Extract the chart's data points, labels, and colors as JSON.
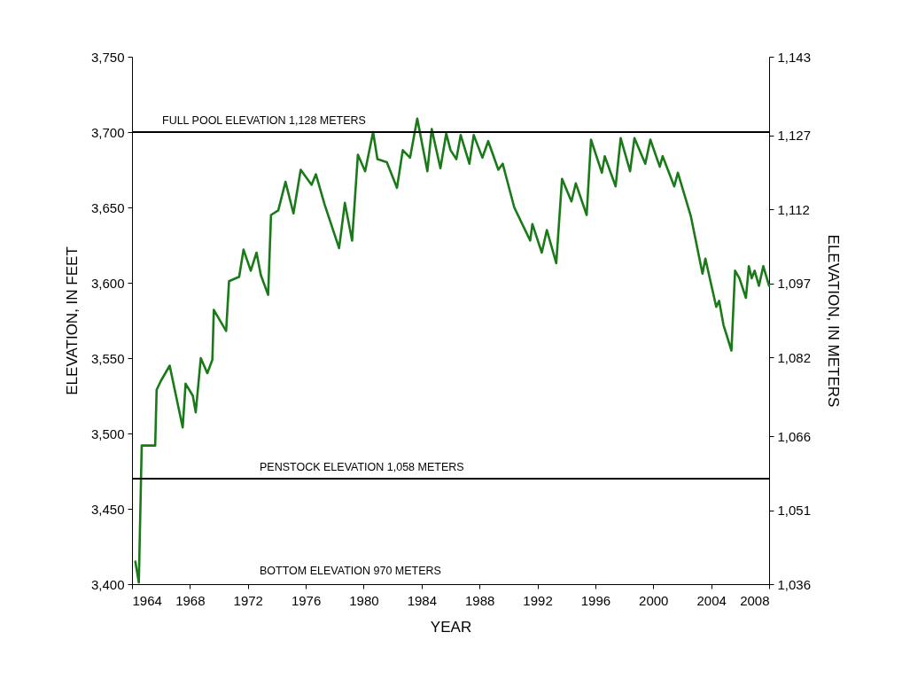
{
  "chart_data": {
    "type": "line",
    "xlabel": "YEAR",
    "ylabel": "ELEVATION, IN FEET",
    "y2label": "ELEVATION, IN METERS",
    "xlim": [
      1964,
      2008
    ],
    "xticks": [
      1964,
      1968,
      1972,
      1976,
      1980,
      1984,
      1988,
      1992,
      1996,
      2000,
      2004,
      2008
    ],
    "ylim": [
      3400,
      3750
    ],
    "yticks": [
      {
        "value": 3400,
        "label": "3,400"
      },
      {
        "value": 3450,
        "label": "3,450"
      },
      {
        "value": 3500,
        "label": "3,500"
      },
      {
        "value": 3550,
        "label": "3,550"
      },
      {
        "value": 3600,
        "label": "3,600"
      },
      {
        "value": 3650,
        "label": "3,650"
      },
      {
        "value": 3700,
        "label": "3,700"
      },
      {
        "value": 3750,
        "label": "3,750"
      }
    ],
    "y2lim": [
      1036,
      1143
    ],
    "y2ticks": [
      {
        "value": 1036,
        "label": "1,036"
      },
      {
        "value": 1051,
        "label": "1,051"
      },
      {
        "value": 1066,
        "label": "1,066"
      },
      {
        "value": 1082,
        "label": "1,082"
      },
      {
        "value": 1097,
        "label": "1,097"
      },
      {
        "value": 1112,
        "label": "1,112"
      },
      {
        "value": 1127,
        "label": "1,127"
      },
      {
        "value": 1143,
        "label": "1,143"
      }
    ],
    "grid": false,
    "marker": "none",
    "line_style": "solid",
    "ref_lines": [
      {
        "axis": "y",
        "value": 3700,
        "label": "FULL POOL ELEVATION 1,128 METERS",
        "color": "#000000"
      },
      {
        "axis": "y",
        "value": 3470,
        "label": "PENSTOCK ELEVATION 1,058 METERS",
        "color": "#000000"
      }
    ],
    "annotations": [
      "BOTTOM ELEVATION 970 METERS"
    ],
    "series": [
      {
        "color": "#1a7a1a",
        "x": [
          1964.23,
          1964.47,
          1964.67,
          1965.6,
          1965.7,
          1966.0,
          1966.6,
          1967.5,
          1967.7,
          1968.2,
          1968.4,
          1968.75,
          1969.2,
          1969.55,
          1969.65,
          1970.5,
          1970.7,
          1971.4,
          1971.7,
          1972.2,
          1972.6,
          1972.9,
          1973.4,
          1973.6,
          1974.1,
          1974.6,
          1975.15,
          1975.65,
          1976.4,
          1976.7,
          1977.3,
          1978.3,
          1978.7,
          1979.2,
          1979.6,
          1980.1,
          1980.65,
          1980.95,
          1981.6,
          1982.3,
          1982.7,
          1983.2,
          1983.7,
          1984.4,
          1984.7,
          1985.3,
          1985.7,
          1986.0,
          1986.4,
          1986.7,
          1987.3,
          1987.6,
          1988.2,
          1988.6,
          1989.3,
          1989.6,
          1990.4,
          1991.5,
          1991.65,
          1992.3,
          1992.65,
          1993.3,
          1993.7,
          1994.35,
          1994.65,
          1995.4,
          1995.7,
          1996.45,
          1996.65,
          1997.4,
          1997.75,
          1998.4,
          1998.7,
          1999.45,
          1999.8,
          2000.45,
          2000.65,
          2001.45,
          2001.7,
          2002.6,
          2003.4,
          2003.6,
          2004.35,
          2004.55,
          2004.85,
          2005.4,
          2005.65,
          2005.95,
          2006.4,
          2006.6,
          2006.8,
          2007.0,
          2007.3,
          2007.6,
          2008.0
        ],
        "values": [
          3415,
          3401,
          3492,
          3492,
          3529,
          3535,
          3545,
          3504,
          3533,
          3525,
          3514,
          3550,
          3540,
          3549,
          3582,
          3568,
          3601,
          3604,
          3622,
          3608,
          3620,
          3605,
          3592,
          3645,
          3648,
          3667,
          3646,
          3675,
          3665,
          3672,
          3652,
          3623,
          3653,
          3628,
          3685,
          3674,
          3700,
          3682,
          3680,
          3663,
          3688,
          3683,
          3709,
          3674,
          3702,
          3676,
          3699,
          3688,
          3682,
          3698,
          3679,
          3698,
          3683,
          3694,
          3675,
          3679,
          3650,
          3628,
          3639,
          3620,
          3635,
          3613,
          3669,
          3654,
          3666,
          3645,
          3695,
          3673,
          3684,
          3664,
          3696,
          3674,
          3696,
          3679,
          3695,
          3677,
          3684,
          3664,
          3673,
          3644,
          3606,
          3616,
          3584,
          3588,
          3572,
          3555,
          3608,
          3603,
          3590,
          3611,
          3603,
          3608,
          3598,
          3611,
          3598
        ]
      }
    ]
  }
}
